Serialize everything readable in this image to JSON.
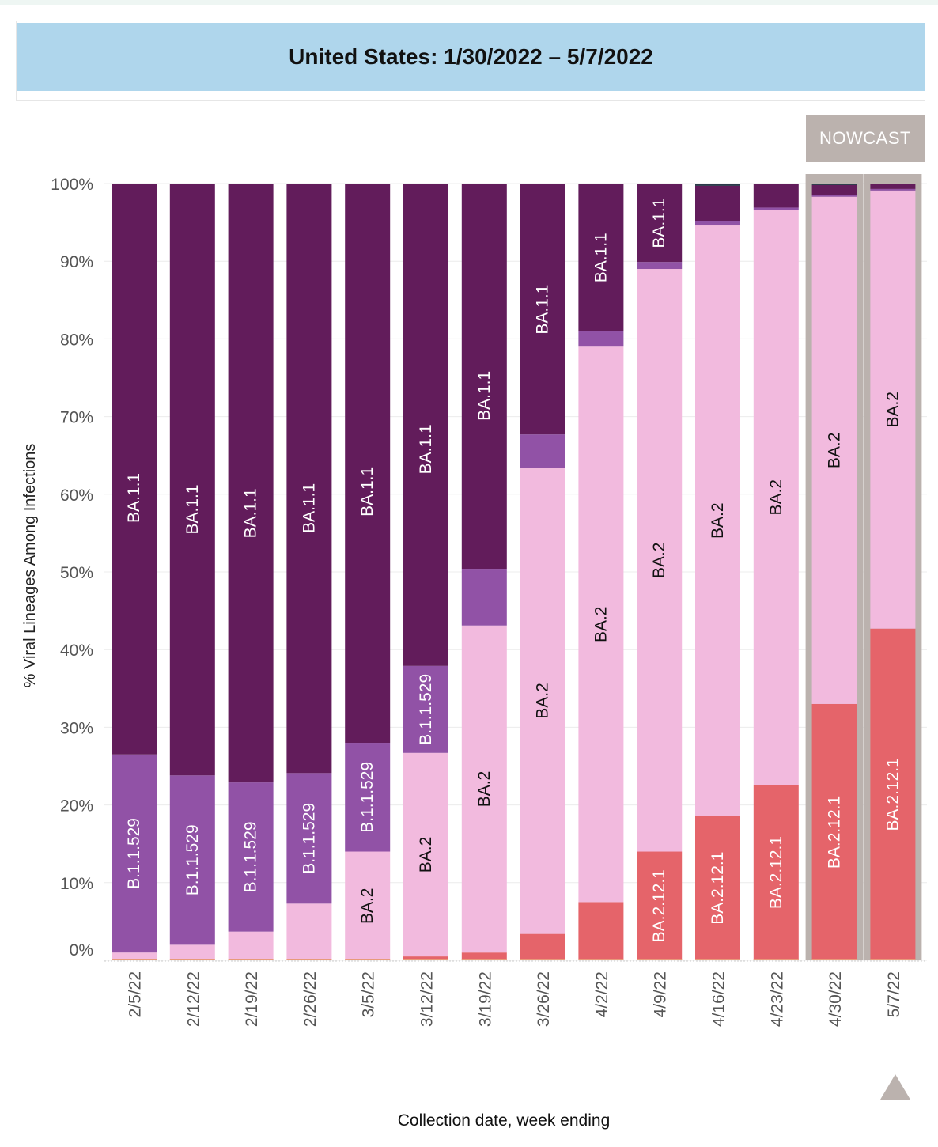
{
  "title": "United States: 1/30/2022 – 5/7/2022",
  "nowcast_label": "NOWCAST",
  "colors": {
    "BA.1.1": "#621c5b",
    "B.1.1.529": "#9152a6",
    "BA.2": "#f2bade",
    "BA.2.12.1": "#e5646a",
    "other": "#e89a7a",
    "top_other": "#2b3a4a",
    "nowcast_bg": "#bbb2ae"
  },
  "icons": {
    "scroll_to_top": "triangle-up-icon"
  },
  "chart_data": {
    "type": "bar",
    "stacked": true,
    "ylabel": "% Viral Lineages Among Infections",
    "xlabel": "Collection date, week ending",
    "ylim": [
      0,
      100
    ],
    "yticks": [
      "0%",
      "10%",
      "20%",
      "30%",
      "40%",
      "50%",
      "60%",
      "70%",
      "80%",
      "90%",
      "100%"
    ],
    "categories": [
      "2/5/22",
      "2/12/22",
      "2/19/22",
      "2/26/22",
      "3/5/22",
      "3/12/22",
      "3/19/22",
      "3/26/22",
      "4/2/22",
      "4/9/22",
      "4/16/22",
      "4/23/22",
      "4/30/22",
      "5/7/22"
    ],
    "nowcast_categories": [
      "4/30/22",
      "5/7/22"
    ],
    "series": [
      {
        "name": "BA.2.12.1",
        "values": [
          0,
          0,
          0,
          0,
          0,
          0.5,
          1,
          3.4,
          7.5,
          14,
          18.6,
          22.6,
          33,
          42.7
        ]
      },
      {
        "name": "BA.2",
        "values": [
          1,
          2,
          3.7,
          7.3,
          14,
          26.2,
          42.1,
          60,
          71.5,
          75,
          76,
          74,
          65.3,
          56.4
        ]
      },
      {
        "name": "B.1.1.529",
        "values": [
          25.5,
          21.8,
          19.2,
          16.8,
          14,
          11.2,
          7.3,
          4.3,
          2,
          0.9,
          0.6,
          0.3,
          0.2,
          0.2
        ]
      },
      {
        "name": "BA.1.1",
        "values": [
          73.4,
          76.1,
          77,
          75.8,
          71.9,
          62,
          49.5,
          32.2,
          18.9,
          10,
          4.5,
          3,
          1.3,
          0.6
        ]
      }
    ],
    "bar_labels": [
      [
        "",
        "B.1.1.529",
        "BA.1.1"
      ],
      [
        "",
        "B.1.1.529",
        "BA.1.1"
      ],
      [
        "",
        "B.1.1.529",
        "BA.1.1"
      ],
      [
        "",
        "B.1.1.529",
        "BA.1.1"
      ],
      [
        "BA.2",
        "B.1.1.529",
        "BA.1.1"
      ],
      [
        "BA.2",
        "B.1.1.529",
        "BA.1.1"
      ],
      [
        "BA.2",
        "",
        "BA.1.1"
      ],
      [
        "BA.2",
        "",
        "BA.1.1"
      ],
      [
        "BA.2",
        "",
        "BA.1.1"
      ],
      [
        "BA.2.12.1",
        "BA.2",
        "BA.1.1"
      ],
      [
        "BA.2.12.1",
        "BA.2",
        ""
      ],
      [
        "BA.2.12.1",
        "BA.2",
        ""
      ],
      [
        "BA.2.12.1",
        "BA.2",
        ""
      ],
      [
        "BA.2.12.1",
        "BA.2",
        ""
      ]
    ]
  }
}
